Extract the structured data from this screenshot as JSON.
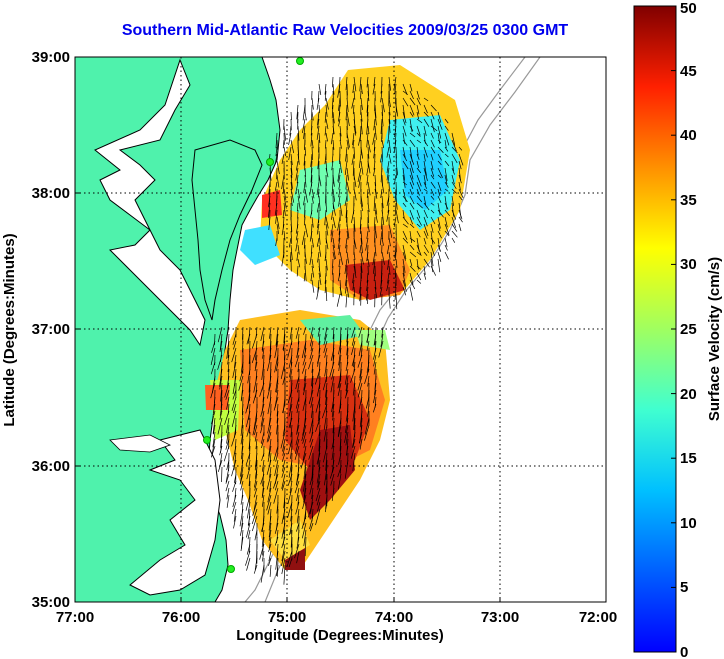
{
  "title": "Southern Mid-Atlantic Raw Velocities 2009/03/25 0300 GMT",
  "xlabel": "Longitude (Degrees:Minutes)",
  "ylabel": "Latitude (Degrees:Minutes)",
  "x_ticks": [
    "77:00",
    "76:00",
    "75:00",
    "74:00",
    "73:00",
    "72:00"
  ],
  "y_ticks": [
    "39:00",
    "38:00",
    "37:00",
    "36:00",
    "35:00"
  ],
  "colorbar": {
    "label": "Surface Velocity (cm/s)",
    "ticks": [
      "0",
      "5",
      "10",
      "15",
      "20",
      "25",
      "30",
      "35",
      "40",
      "45",
      "50"
    ],
    "range": [
      0,
      50
    ],
    "colormap": "jet"
  },
  "colors": {
    "land": "#4ff2ac",
    "coastline": "#000000",
    "grid": "#000000",
    "bathymetry": "#999999",
    "stations": "#22ee22",
    "title": "#0000ee"
  },
  "stations_icon": "station-dot-icon"
}
